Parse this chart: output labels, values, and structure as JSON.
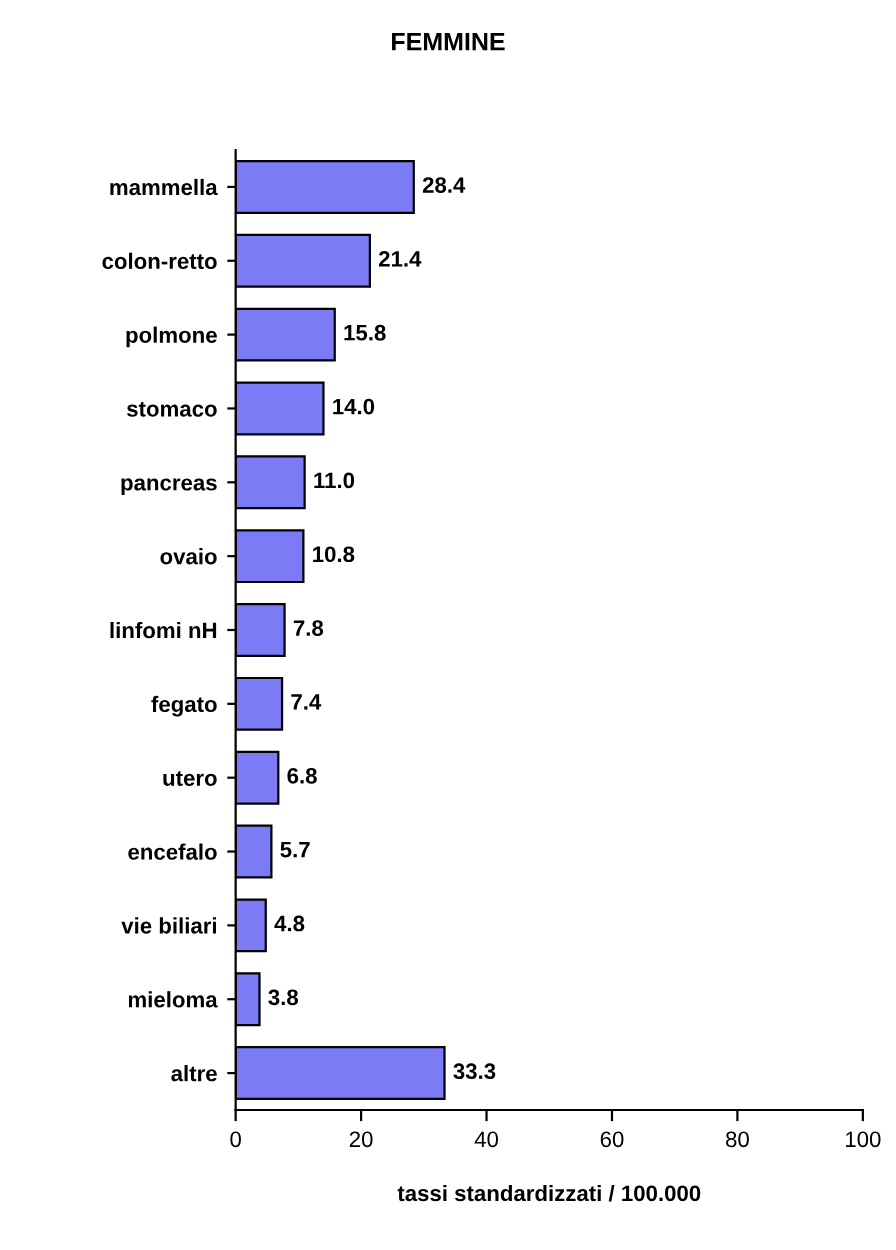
{
  "chart_data": {
    "type": "bar",
    "orientation": "horizontal",
    "title": "FEMMINE",
    "xlabel": "tassi standardizzati / 100.000",
    "categories": [
      "mammella",
      "colon-retto",
      "polmone",
      "stomaco",
      "pancreas",
      "ovaio",
      "linfomi nH",
      "fegato",
      "utero",
      "encefalo",
      "vie biliari",
      "mieloma",
      "altre"
    ],
    "values": [
      28.4,
      21.4,
      15.8,
      14.0,
      11.0,
      10.8,
      7.8,
      7.4,
      6.8,
      5.7,
      4.8,
      3.8,
      33.3
    ],
    "value_labels": [
      "28.4",
      "21.4",
      "15.8",
      "14.0",
      "11.0",
      "10.8",
      "7.8",
      "7.4",
      "6.8",
      "5.7",
      "4.8",
      "3.8",
      "33.3"
    ],
    "color": "#7b7bf5",
    "xlim": [
      0,
      100
    ],
    "xticks": [
      0,
      20,
      40,
      60,
      80,
      100
    ],
    "grid": false
  }
}
